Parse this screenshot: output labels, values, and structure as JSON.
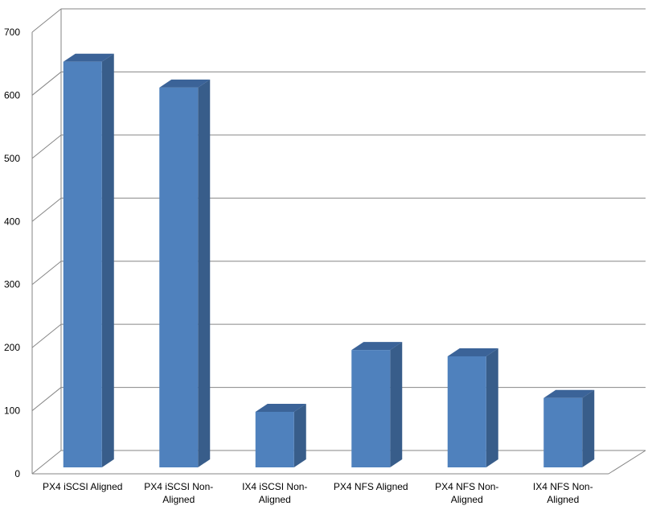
{
  "chart_data": {
    "type": "bar",
    "title": "",
    "xlabel": "",
    "ylabel": "",
    "categories": [
      [
        "PX4 iSCSI Aligned"
      ],
      [
        "PX4 iSCSI Non-",
        "Aligned"
      ],
      [
        "IX4 iSCSI Non-",
        "Aligned"
      ],
      [
        "PX4 NFS Aligned"
      ],
      [
        "PX4 NFS Non-",
        "Aligned"
      ],
      [
        "IX4 NFS Non-",
        "Aligned"
      ]
    ],
    "values": [
      643,
      602,
      88,
      186,
      176,
      110
    ],
    "ylim": [
      0,
      700
    ],
    "yticks": [
      0,
      100,
      200,
      300,
      400,
      500,
      600,
      700
    ],
    "grid": true,
    "three_d": true,
    "colors": {
      "bar_front": "#4f81bd",
      "bar_side": "#385d8a",
      "bar_top": "#3b6398",
      "grid": "#868686",
      "axis": "#868686"
    }
  }
}
